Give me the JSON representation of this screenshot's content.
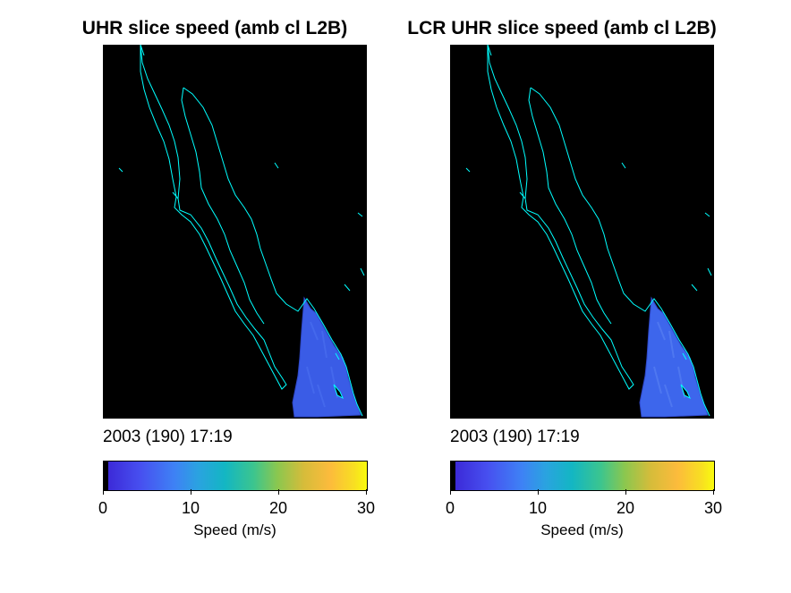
{
  "panels": [
    {
      "title": "UHR slice speed (amb cl L2B)",
      "timestamp": "2003 (190) 17:19",
      "colorbar": {
        "ticks": [
          "0",
          "10",
          "20",
          "30"
        ],
        "label": "Speed (m/s)",
        "range": [
          0,
          30
        ]
      }
    },
    {
      "title": "LCR UHR slice speed (amb cl L2B)",
      "timestamp": "2003 (190) 17:19",
      "colorbar": {
        "ticks": [
          "0",
          "10",
          "20",
          "30"
        ],
        "label": "Speed (m/s)",
        "range": [
          0,
          30
        ]
      }
    }
  ],
  "colors": {
    "coastline": "#00ffff",
    "background": "#000000",
    "wind_field": "#3a5ce6"
  }
}
